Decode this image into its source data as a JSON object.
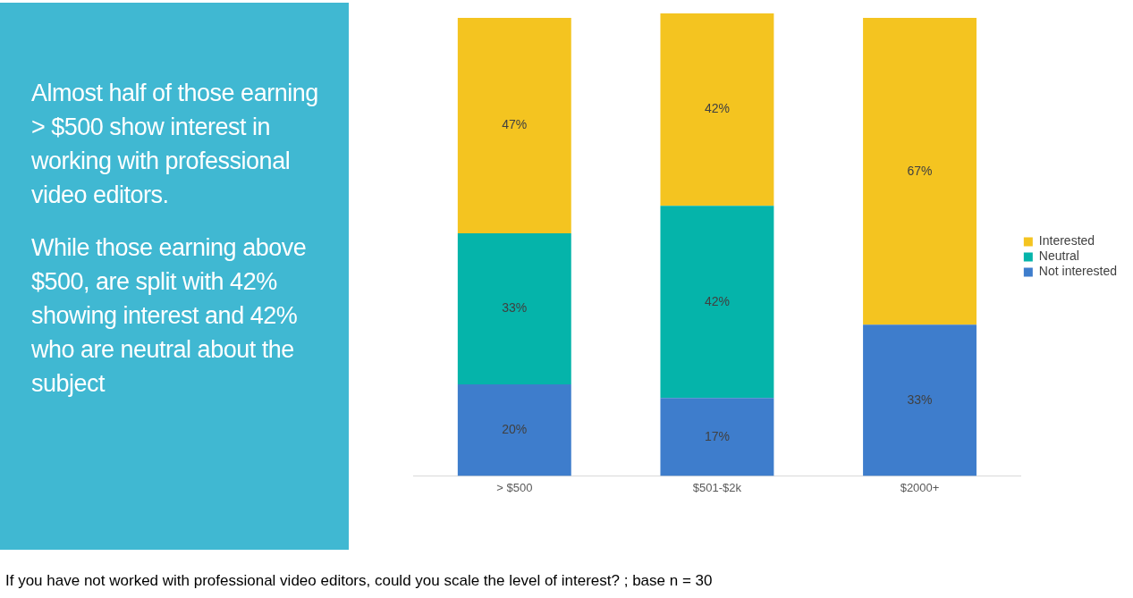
{
  "chart_data": {
    "type": "bar",
    "stacked": true,
    "categories": [
      "> $500",
      "$501-$2k",
      "$2000+"
    ],
    "series": [
      {
        "name": "Not interested",
        "color": "#3e7dcc",
        "values": [
          20,
          17,
          33
        ],
        "value_labels": [
          "20%",
          "17%",
          "33%"
        ]
      },
      {
        "name": "Neutral",
        "color": "#05b4aa",
        "values": [
          33,
          42,
          null
        ],
        "value_labels": [
          "33%",
          "42%",
          null
        ]
      },
      {
        "name": "Interested",
        "color": "#f4c420",
        "values": [
          47,
          42,
          67
        ],
        "value_labels": [
          "47%",
          "42%",
          "67%"
        ]
      }
    ],
    "tick_labels": "x",
    "legend": "right",
    "grid": false,
    "annotations": [
      "Almost half of those earning > $500 show interest in working with professional video editors.",
      "While those earning above $500, are split with 42% showing interest and 42% who are neutral about the subject",
      "If you have not worked with professional video editors, could you scale the level of interest?  ; base n = 30"
    ]
  }
}
